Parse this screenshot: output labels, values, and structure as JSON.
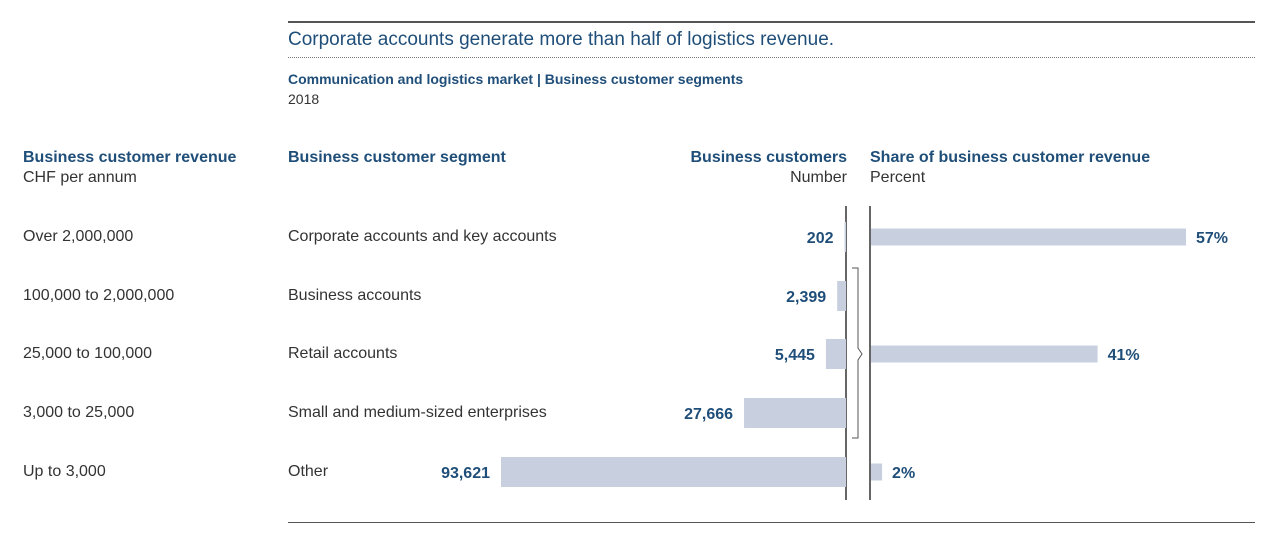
{
  "header": {
    "headline": "Corporate accounts generate more than half of logistics revenue.",
    "subtitle": "Communication and logistics market | Business customer segments",
    "year": "2018"
  },
  "columns": {
    "revenue": {
      "title": "Business customer revenue",
      "unit": "CHF per annum"
    },
    "segment": {
      "title": "Business customer segment"
    },
    "customers": {
      "title": "Business customers",
      "unit": "Number"
    },
    "share": {
      "title": "Share of business customer revenue",
      "unit": "Percent"
    }
  },
  "rows": [
    {
      "revenue_band": "Over 2,000,000",
      "segment": "Corporate accounts and key accounts"
    },
    {
      "revenue_band": "100,000 to 2,000,000",
      "segment": "Business accounts"
    },
    {
      "revenue_band": "25,000 to 100,000",
      "segment": "Retail accounts"
    },
    {
      "revenue_band": "3,000 to 25,000",
      "segment": "Small and medium-sized enterprises"
    },
    {
      "revenue_band": "Up to 3,000",
      "segment": "Other"
    }
  ],
  "colors": {
    "bar": "#c8d0e0",
    "heading": "#1f4e79",
    "label": "#1f4e79",
    "text": "#333333"
  },
  "chart_data": [
    {
      "type": "bar",
      "orientation": "horizontal",
      "direction": "leftward",
      "xlabel": "Business customers",
      "unit": "Number",
      "categories": [
        "Corporate accounts and key accounts",
        "Business accounts",
        "Retail accounts",
        "Small and medium-sized enterprises",
        "Other"
      ],
      "values": [
        202,
        2399,
        5445,
        27666,
        93621
      ],
      "value_labels": [
        "202",
        "2,399",
        "5,445",
        "27,666",
        "93,621"
      ]
    },
    {
      "type": "bar",
      "orientation": "horizontal",
      "xlabel": "Share of business customer revenue",
      "unit": "Percent",
      "groups": [
        {
          "categories": [
            "Corporate accounts and key accounts"
          ],
          "value": 57,
          "label": "57%"
        },
        {
          "categories": [
            "Business accounts",
            "Retail accounts",
            "Small and medium-sized enterprises"
          ],
          "value": 41,
          "label": "41%"
        },
        {
          "categories": [
            "Other"
          ],
          "value": 2,
          "label": "2%"
        }
      ]
    }
  ]
}
